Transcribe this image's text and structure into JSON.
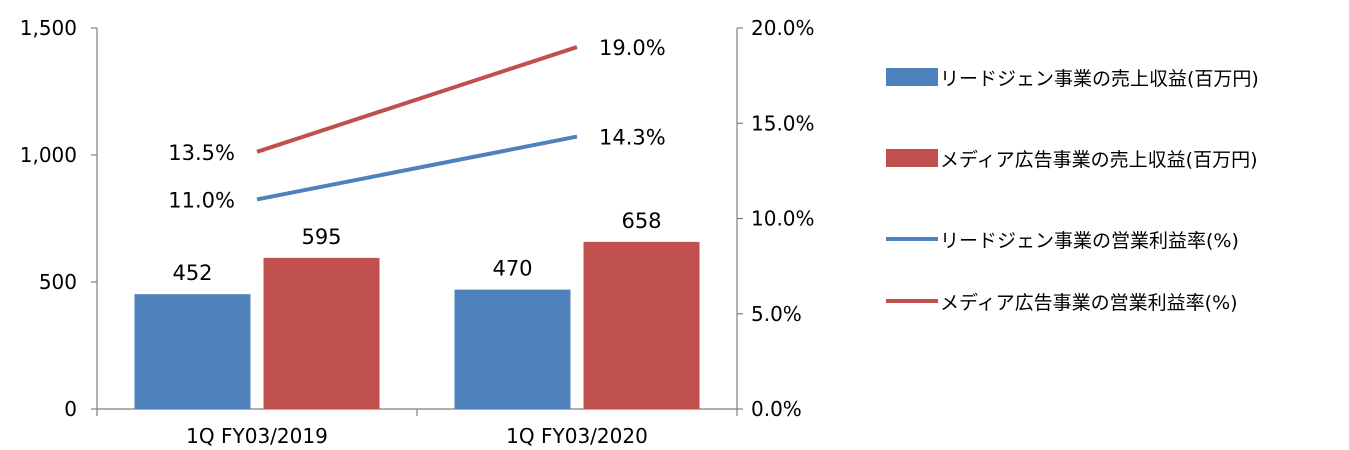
{
  "chart_data": {
    "type": "bar",
    "categories": [
      "1Q FY03/2019",
      "1Q FY03/2020"
    ],
    "series": [
      {
        "name": "リードジェン事業の売上収益(百万円)",
        "type": "bar",
        "axis": "left",
        "color": "#4F81BD",
        "values": [
          452,
          470
        ],
        "labels": [
          "452",
          "470"
        ]
      },
      {
        "name": "メディア広告事業の売上収益(百万円)",
        "type": "bar",
        "axis": "left",
        "color": "#C0504D",
        "values": [
          595,
          658
        ],
        "labels": [
          "595",
          "658"
        ]
      },
      {
        "name": "リードジェン事業の営業利益率(%)",
        "type": "line",
        "axis": "right",
        "color": "#4F81BD",
        "values": [
          11.0,
          14.3
        ],
        "labels": [
          "11.0%",
          "14.3%"
        ]
      },
      {
        "name": "メディア広告事業の営業利益率(%)",
        "type": "line",
        "axis": "right",
        "color": "#C0504D",
        "values": [
          13.5,
          19.0
        ],
        "labels": [
          "13.5%",
          "19.0%"
        ]
      }
    ],
    "y_left": {
      "ylim": [
        0,
        1500
      ],
      "ticks": [
        0,
        500,
        1000,
        1500
      ],
      "tick_labels": [
        "0",
        "500",
        "1,000",
        "1,500"
      ]
    },
    "y_right": {
      "ylim": [
        0,
        20
      ],
      "ticks": [
        0,
        5,
        10,
        15,
        20
      ],
      "tick_labels": [
        "0.0%",
        "5.0%",
        "10.0%",
        "15.0%",
        "20.0%"
      ]
    },
    "grid": false,
    "legend": "right",
    "title": "",
    "xlabel": "",
    "ylabel": ""
  }
}
